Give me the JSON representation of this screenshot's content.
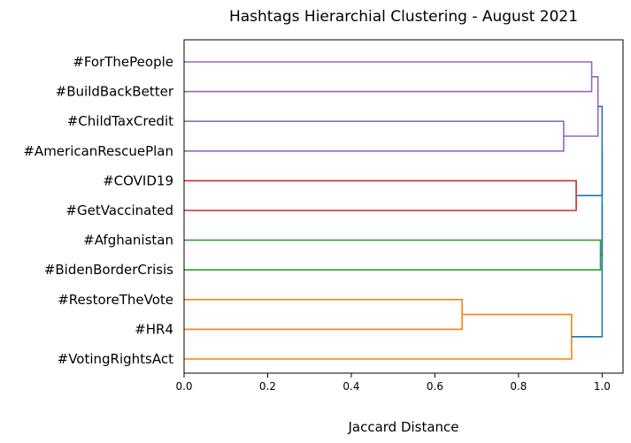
{
  "chart_data": {
    "type": "dendrogram",
    "orientation": "left",
    "title": "Hashtags Hierarchial Clustering - August 2021",
    "xlabel": "Jaccard Distance",
    "ylabel": "",
    "xlim": [
      0,
      1.05
    ],
    "xticks": [
      "0.0",
      "0.2",
      "0.4",
      "0.6",
      "0.8",
      "1.0"
    ],
    "xtick_values": [
      0,
      0.2,
      0.4,
      0.6,
      0.8,
      1.0
    ],
    "grid": false,
    "leaves": [
      "#ForThePeople",
      "#BuildBackBetter",
      "#ChildTaxCredit",
      "#AmericanRescuePlan",
      "#COVID19",
      "#GetVaccinated",
      "#Afghanistan",
      "#BidenBorderCrisis",
      "#RestoreTheVote",
      "#HR4",
      "#VotingRightsAct"
    ],
    "merges": [
      {
        "left": "#RestoreTheVote",
        "right": "#HR4",
        "distance": 0.665,
        "color": "#ff7f0e"
      },
      {
        "left": "m0",
        "right": "#VotingRightsAct",
        "distance": 0.927,
        "color": "#ff7f0e"
      },
      {
        "left": "#Afghanistan",
        "right": "#BidenBorderCrisis",
        "distance": 0.996,
        "color": "#2ca02c"
      },
      {
        "left": "#COVID19",
        "right": "#GetVaccinated",
        "distance": 0.938,
        "color": "#d62728"
      },
      {
        "left": "#ChildTaxCredit",
        "right": "#AmericanRescuePlan",
        "distance": 0.908,
        "color": "#9467bd"
      },
      {
        "left": "#ForThePeople",
        "right": "#BuildBackBetter",
        "distance": 0.975,
        "color": "#9467bd"
      },
      {
        "left": "m5",
        "right": "m4",
        "distance": 0.99,
        "color": "#9467bd"
      },
      {
        "left": "m6",
        "right": "m3",
        "distance": 1.0,
        "color": "#1f77b4"
      },
      {
        "left": "m7",
        "right": "m2",
        "distance": 1.0,
        "color": "#1f77b4"
      },
      {
        "left": "m8",
        "right": "m1",
        "distance": 1.0,
        "color": "#1f77b4"
      }
    ]
  }
}
